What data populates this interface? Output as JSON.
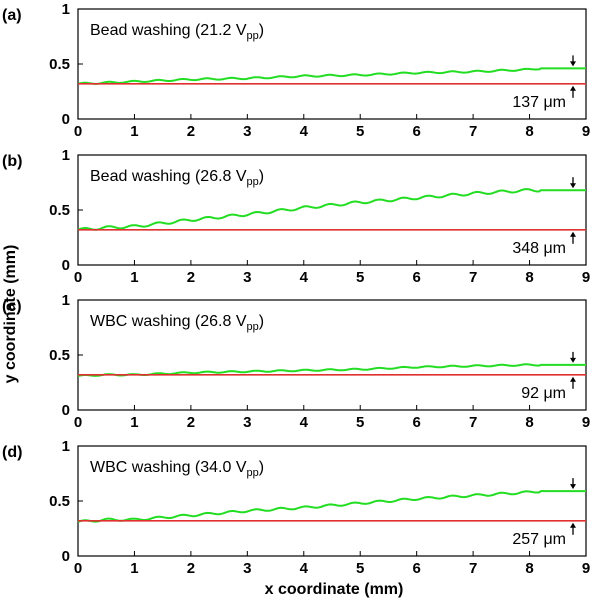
{
  "figure": {
    "xlabel": "x coordinate (mm)",
    "ylabel": "y coordinate (mm)"
  },
  "colors": {
    "trajectory": "#22dd22",
    "reference": "#e03030",
    "text": "#000000"
  },
  "chart_data": [
    {
      "type": "line",
      "panel": "(a)",
      "title": "Bead washing (21.2 V",
      "title_sub": "pp",
      "title_end": ")",
      "annotation": "137 μm",
      "xlim": [
        0,
        9
      ],
      "ylim": [
        0,
        1
      ],
      "xticks": [
        0,
        1,
        2,
        3,
        4,
        5,
        6,
        7,
        8,
        9
      ],
      "yticks": [
        {
          "v": 0,
          "label": "0"
        },
        {
          "v": 0.5,
          "label": "0.5"
        },
        {
          "v": 1,
          "label": "1"
        }
      ],
      "series": [
        {
          "role": "trajectory",
          "x": [
            0,
            0.5,
            1,
            2,
            3,
            4,
            5,
            6,
            7,
            8,
            8.2,
            9
          ],
          "y": [
            0.32,
            0.33,
            0.34,
            0.36,
            0.37,
            0.39,
            0.4,
            0.42,
            0.43,
            0.45,
            0.46,
            0.46
          ],
          "wiggle": 0.007
        },
        {
          "role": "reference",
          "x": [
            0,
            9
          ],
          "y": [
            0.32,
            0.32
          ]
        }
      ]
    },
    {
      "type": "line",
      "panel": "(b)",
      "title": "Bead washing (26.8 V",
      "title_sub": "pp",
      "title_end": ")",
      "annotation": "348 μm",
      "xlim": [
        0,
        9
      ],
      "ylim": [
        0,
        1
      ],
      "xticks": [
        0,
        1,
        2,
        3,
        4,
        5,
        6,
        7,
        8,
        9
      ],
      "yticks": [
        {
          "v": 0,
          "label": "0"
        },
        {
          "v": 0.5,
          "label": "0.5"
        },
        {
          "v": 1,
          "label": "1"
        }
      ],
      "series": [
        {
          "role": "trajectory",
          "x": [
            0,
            0.5,
            1,
            2,
            3,
            4,
            5,
            6,
            7,
            8,
            8.2,
            9
          ],
          "y": [
            0.32,
            0.34,
            0.35,
            0.41,
            0.46,
            0.52,
            0.57,
            0.61,
            0.65,
            0.68,
            0.68,
            0.68
          ],
          "wiggle": 0.012
        },
        {
          "role": "reference",
          "x": [
            0,
            9
          ],
          "y": [
            0.32,
            0.32
          ]
        }
      ]
    },
    {
      "type": "line",
      "panel": "(c)",
      "title": "WBC washing (26.8 V",
      "title_sub": "pp",
      "title_end": ")",
      "annotation": "92 μm",
      "xlim": [
        0,
        9
      ],
      "ylim": [
        0,
        1
      ],
      "xticks": [
        0,
        1,
        2,
        3,
        4,
        5,
        6,
        7,
        8,
        9
      ],
      "yticks": [
        {
          "v": 0,
          "label": "0"
        },
        {
          "v": 0.5,
          "label": "0.5"
        },
        {
          "v": 1,
          "label": "1"
        }
      ],
      "series": [
        {
          "role": "trajectory",
          "x": [
            0,
            0.5,
            1,
            2,
            3,
            4,
            5,
            6,
            7,
            8,
            8.2,
            9
          ],
          "y": [
            0.31,
            0.32,
            0.32,
            0.34,
            0.35,
            0.36,
            0.37,
            0.39,
            0.4,
            0.41,
            0.41,
            0.41
          ],
          "wiggle": 0.006
        },
        {
          "role": "reference",
          "x": [
            0,
            9
          ],
          "y": [
            0.32,
            0.32
          ]
        }
      ]
    },
    {
      "type": "line",
      "panel": "(d)",
      "title": "WBC washing (34.0 V",
      "title_sub": "pp",
      "title_end": ")",
      "annotation": "257 μm",
      "xlim": [
        0,
        9
      ],
      "ylim": [
        0,
        1
      ],
      "xticks": [
        0,
        1,
        2,
        3,
        4,
        5,
        6,
        7,
        8,
        9
      ],
      "yticks": [
        {
          "v": 0,
          "label": "0"
        },
        {
          "v": 0.5,
          "label": "0.5"
        },
        {
          "v": 1,
          "label": "1"
        }
      ],
      "series": [
        {
          "role": "trajectory",
          "x": [
            0,
            0.5,
            1,
            2,
            3,
            4,
            5,
            6,
            7,
            8,
            8.2,
            9
          ],
          "y": [
            0.31,
            0.33,
            0.33,
            0.37,
            0.41,
            0.44,
            0.48,
            0.52,
            0.55,
            0.58,
            0.59,
            0.59
          ],
          "wiggle": 0.01
        },
        {
          "role": "reference",
          "x": [
            0,
            9
          ],
          "y": [
            0.32,
            0.32
          ]
        }
      ]
    }
  ]
}
